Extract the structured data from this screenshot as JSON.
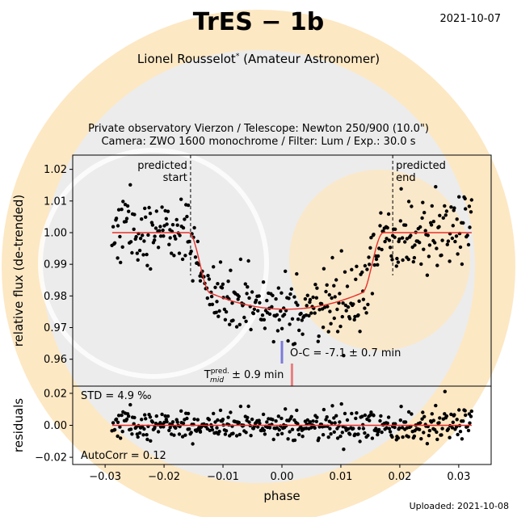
{
  "header": {
    "title": "TrES − 1b",
    "date": "2021-10-07",
    "observer": "Lionel Rousselot",
    "observer_mark": "*",
    "observer_role": "(Amateur Astronomer)",
    "subtitle_line1": "Private observatory Vierzon / Telescope: Newton 250/900 (10.0\")",
    "subtitle_line2": "Camera: ZWO 1600 monochrome / Filter: Lum / Exp.: 30.0 s"
  },
  "footer": {
    "uploaded": "Uploaded: 2021-10-08"
  },
  "colors": {
    "model": "#e8302a",
    "points": "#000000",
    "oc_marker": "#7b7bd9",
    "tmid_marker": "#e88080",
    "watermark_ring": "#fde8c4",
    "watermark_disc": "#ececec"
  },
  "chart_data": [
    {
      "type": "scatter",
      "name": "light-curve",
      "ylabel": "relative flux (de-trended)",
      "xlim": [
        -0.0355,
        0.0355
      ],
      "ylim": [
        0.9515,
        1.0245
      ],
      "yticks": [
        0.96,
        0.97,
        0.98,
        0.99,
        1.0,
        1.01,
        1.02
      ],
      "ytick_labels": [
        "0.96",
        "0.97",
        "0.98",
        "0.99",
        "1.00",
        "1.01",
        "1.02"
      ],
      "x_range": [
        -0.0288,
        0.0322
      ],
      "n_points": 420,
      "transit_model": {
        "t0": 0.0,
        "baseline": 1.0,
        "depth_center": 0.0242,
        "ingress_start": -0.0158,
        "egress_end": 0.0172,
        "ingress_duration": 0.0035
      },
      "scatter_std": 0.0049,
      "annotations": {
        "predicted_start": {
          "x": -0.0155,
          "label_1": "predicted",
          "label_2": "start"
        },
        "predicted_end": {
          "x": 0.0188,
          "label_1": "predicted",
          "label_2": "end"
        },
        "oc_marker_x": 0.0,
        "oc_label": "O-C = -7.1 ± 0.7 min",
        "tmid_marker_x": 0.0017,
        "tmid_prefix": "T",
        "tmid_sup": "pred.",
        "tmid_sub": "mid",
        "tmid_label": "± 0.9 min"
      },
      "grid": false,
      "legend": "none"
    },
    {
      "type": "scatter",
      "name": "residuals",
      "xlabel": "phase",
      "ylabel": "residuals",
      "xlim": [
        -0.0355,
        0.0355
      ],
      "ylim": [
        -0.0245,
        0.0245
      ],
      "yticks": [
        -0.02,
        0.0,
        0.02
      ],
      "ytick_labels": [
        "−0.02",
        "0.00",
        "0.02"
      ],
      "xticks": [
        -0.03,
        -0.02,
        -0.01,
        0.0,
        0.01,
        0.02,
        0.03
      ],
      "xtick_labels": [
        "−0.03",
        "−0.02",
        "−0.01",
        "0.00",
        "0.01",
        "0.02",
        "0.03"
      ],
      "std_label": "STD = 4.9 ‰",
      "autocorr_label": "AutoCorr = 0.12",
      "residual_scale": 0.0049,
      "grid": false,
      "legend": "none"
    }
  ]
}
